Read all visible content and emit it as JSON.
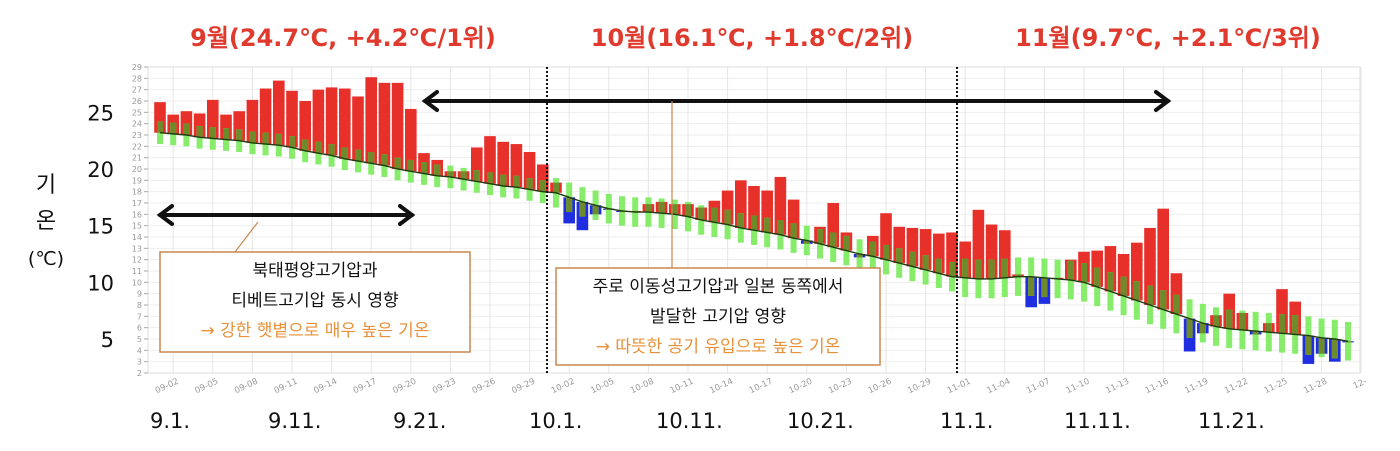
{
  "titles": {
    "sep": "9월(24.7℃,  +4.2℃/1위)",
    "oct": "10월(16.1℃,  +1.8℃/2위)",
    "nov": "11월(9.7℃,  +2.1℃/3위)"
  },
  "y_axis_label": [
    "기",
    "온",
    "(℃)"
  ],
  "annotations": {
    "box1": [
      "북태평양고기압과",
      "티베트고기압 동시 영향",
      "→ 강한 햇볕으로 매우 높은 기온"
    ],
    "box2": [
      "주로 이동성고기압과 일본 동쪽에서",
      "발달한 고기압 영향",
      "→ 따뜻한 공기 유입으로 높은 기온"
    ]
  },
  "bottom_labels": [
    "9.1.",
    "9.11.",
    "9.21.",
    "10.1.",
    "10.11.",
    "10.21.",
    "11.1.",
    "11.11.",
    "11.21."
  ],
  "chart_data": {
    "type": "bar",
    "ylim": [
      2,
      29
    ],
    "major_ticks": [
      5,
      10,
      15,
      20,
      25
    ],
    "minor_ticks": [
      2,
      3,
      4,
      5,
      6,
      7,
      8,
      9,
      10,
      11,
      12,
      13,
      14,
      15,
      16,
      17,
      18,
      19,
      20,
      21,
      22,
      23,
      24,
      25,
      26,
      27,
      28,
      29
    ],
    "x_tick_labels": [
      "09-02",
      "09-05",
      "09-08",
      "09-11",
      "09-14",
      "09-17",
      "09-20",
      "09-23",
      "09-26",
      "09-29",
      "10-02",
      "10-05",
      "10-08",
      "10-11",
      "10-14",
      "10-17",
      "10-20",
      "10-23",
      "10-26",
      "10-29",
      "11-01",
      "11-04",
      "11-07",
      "11-10",
      "11-13",
      "11-16",
      "11-19",
      "11-22",
      "11-25",
      "11-28",
      "12-"
    ],
    "grid": true,
    "colors": {
      "above": "#e8302a",
      "below": "#1e2ee0",
      "normal_band": "#86ec6a",
      "band_overlap": "#6f8a2a",
      "normal_line": "#1f3a10"
    },
    "daily_mean": [
      25.9,
      24.8,
      25.1,
      24.9,
      26.1,
      24.8,
      25.1,
      26.1,
      27.1,
      27.8,
      26.9,
      26.0,
      27.0,
      27.2,
      27.1,
      26.4,
      28.1,
      27.6,
      27.6,
      25.3,
      21.4,
      20.8,
      19.8,
      19.8,
      21.9,
      22.9,
      22.4,
      22.2,
      21.5,
      20.4,
      18.8,
      15.2,
      14.6,
      16.0,
      16.4,
      16.2,
      16.3,
      16.9,
      17.1,
      16.9,
      16.9,
      16.6,
      17.2,
      18.1,
      19.0,
      18.5,
      18.1,
      19.3,
      17.3,
      13.4,
      14.9,
      17.0,
      14.4,
      12.2,
      14.1,
      16.1,
      14.9,
      14.8,
      14.7,
      14.3,
      14.4,
      13.6,
      16.4,
      15.1,
      14.6,
      10.7,
      7.8,
      8.1,
      10.4,
      12.0,
      12.7,
      12.8,
      13.2,
      12.5,
      13.5,
      14.8,
      16.5,
      10.8,
      3.9,
      5.5,
      7.1,
      9.0,
      7.3,
      5.4,
      6.4,
      9.4,
      8.3,
      2.8,
      3.7,
      3.0,
      4.7
    ],
    "normal": [
      23.2,
      23.1,
      23.0,
      22.8,
      22.7,
      22.6,
      22.5,
      22.3,
      22.2,
      22.1,
      21.9,
      21.6,
      21.4,
      21.2,
      20.9,
      20.7,
      20.5,
      20.3,
      20.0,
      19.8,
      19.6,
      19.4,
      19.3,
      19.1,
      18.9,
      18.7,
      18.5,
      18.4,
      18.2,
      18.0,
      17.9,
      17.5,
      17.1,
      16.8,
      16.5,
      16.3,
      16.2,
      16.2,
      16.1,
      16.0,
      15.8,
      15.5,
      15.3,
      15.1,
      14.8,
      14.6,
      14.4,
      14.2,
      13.9,
      13.7,
      13.4,
      13.1,
      12.8,
      12.5,
      12.3,
      12.0,
      11.7,
      11.4,
      11.1,
      10.8,
      10.5,
      10.4,
      10.3,
      10.3,
      10.4,
      10.5,
      10.5,
      10.4,
      10.3,
      10.2,
      10.0,
      9.6,
      9.2,
      8.8,
      8.4,
      8.0,
      7.6,
      7.2,
      6.8,
      6.4,
      6.1,
      5.9,
      5.8,
      5.7,
      5.6,
      5.5,
      5.4,
      5.3,
      5.1,
      5.0,
      4.8
    ],
    "normal_band_halfwidth_by_month": {
      "sep": 1.0,
      "oct": 1.3,
      "nov": 1.7
    }
  }
}
